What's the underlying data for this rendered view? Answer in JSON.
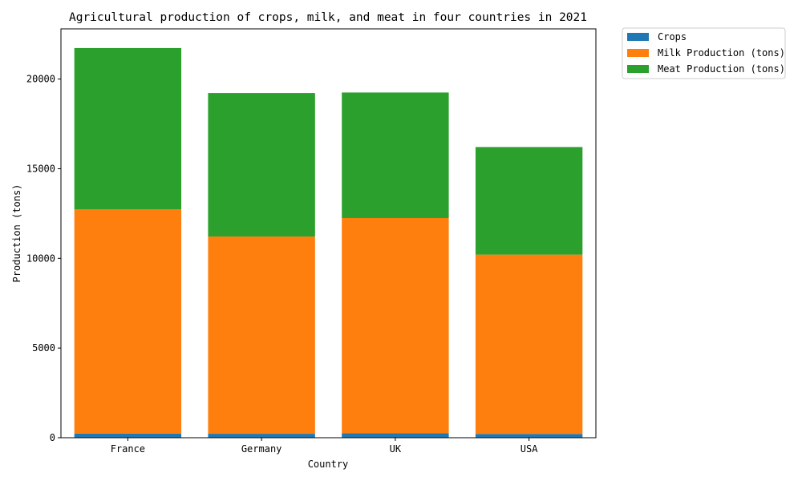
{
  "chart_data": {
    "type": "bar",
    "stacked": true,
    "title": "Agricultural production of crops, milk, and meat in four countries in 2021",
    "xlabel": "Country",
    "ylabel": "Production (tons)",
    "categories": [
      "France",
      "Germany",
      "UK",
      "USA"
    ],
    "ylim": [
      0,
      22800
    ],
    "yticks": [
      0,
      5000,
      10000,
      15000,
      20000
    ],
    "grid": false,
    "legend_placement": "outside-top-right",
    "series": [
      {
        "name": "Crops",
        "color": "#1f77b4",
        "values": [
          230,
          220,
          250,
          210
        ]
      },
      {
        "name": "Milk Production (tons)",
        "color": "#ff7f0e",
        "values": [
          12500,
          11000,
          12000,
          10000
        ]
      },
      {
        "name": "Meat Production (tons)",
        "color": "#2ca02c",
        "values": [
          9000,
          8000,
          7000,
          6000
        ]
      }
    ]
  }
}
